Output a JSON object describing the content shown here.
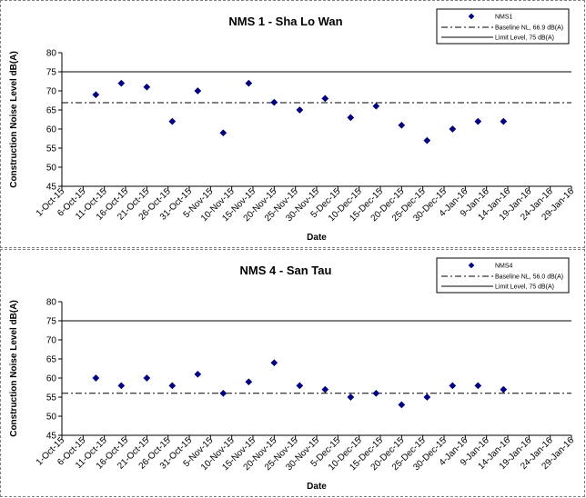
{
  "chart_data": [
    {
      "type": "scatter",
      "title": "NMS 1 - Sha Lo Wan",
      "xlabel": "Date",
      "ylabel": "Construction Noise Level  dB(A)",
      "ylim": [
        45,
        80
      ],
      "yticks": [
        45,
        50,
        55,
        60,
        65,
        70,
        75,
        80
      ],
      "xlim": [
        "2015-10-01",
        "2016-01-29"
      ],
      "x_tick_labels": [
        "1-Oct-15",
        "6-Oct-15",
        "11-Oct-15",
        "16-Oct-15",
        "21-Oct-15",
        "26-Oct-15",
        "31-Oct-15",
        "5-Nov-15",
        "10-Nov-15",
        "15-Nov-15",
        "20-Nov-15",
        "25-Nov-15",
        "30-Nov-15",
        "5-Dec-15",
        "10-Dec-15",
        "15-Dec-15",
        "20-Dec-15",
        "25-Dec-15",
        "30-Dec-15",
        "4-Jan-16",
        "9-Jan-16",
        "14-Jan-16",
        "19-Jan-16",
        "24-Jan-16",
        "29-Jan-16"
      ],
      "legend_position": "top-right",
      "grid": false,
      "series": [
        {
          "name": "NMS1",
          "marker": "diamond",
          "color": "#000080",
          "points": [
            {
              "x": "2015-10-09",
              "y": 69
            },
            {
              "x": "2015-10-15",
              "y": 72
            },
            {
              "x": "2015-10-21",
              "y": 71
            },
            {
              "x": "2015-10-27",
              "y": 62
            },
            {
              "x": "2015-11-02",
              "y": 70
            },
            {
              "x": "2015-11-08",
              "y": 59
            },
            {
              "x": "2015-11-14",
              "y": 72
            },
            {
              "x": "2015-11-20",
              "y": 67
            },
            {
              "x": "2015-11-26",
              "y": 65
            },
            {
              "x": "2015-12-02",
              "y": 68
            },
            {
              "x": "2015-12-08",
              "y": 63
            },
            {
              "x": "2015-12-14",
              "y": 66
            },
            {
              "x": "2015-12-20",
              "y": 61
            },
            {
              "x": "2015-12-26",
              "y": 57
            },
            {
              "x": "2016-01-01",
              "y": 60
            },
            {
              "x": "2016-01-07",
              "y": 62
            },
            {
              "x": "2016-01-13",
              "y": 62
            }
          ]
        },
        {
          "name": "Baseline NL, 66.9 dB(A)",
          "type": "hline",
          "y": 66.9,
          "style": "dash-dot",
          "color": "#000000"
        },
        {
          "name": "Limit Level, 75 dB(A)",
          "type": "hline",
          "y": 75,
          "style": "solid",
          "color": "#000000"
        }
      ]
    },
    {
      "type": "scatter",
      "title": "NMS 4 - San Tau",
      "xlabel": "Date",
      "ylabel": "Construction Noise Level  dB(A)",
      "ylim": [
        45,
        80
      ],
      "yticks": [
        45,
        50,
        55,
        60,
        65,
        70,
        75,
        80
      ],
      "xlim": [
        "2015-10-01",
        "2016-01-29"
      ],
      "x_tick_labels": [
        "1-Oct-15",
        "6-Oct-15",
        "11-Oct-15",
        "16-Oct-15",
        "21-Oct-15",
        "26-Oct-15",
        "31-Oct-15",
        "5-Nov-15",
        "10-Nov-15",
        "15-Nov-15",
        "20-Nov-15",
        "25-Nov-15",
        "30-Nov-15",
        "5-Dec-15",
        "10-Dec-15",
        "15-Dec-15",
        "20-Dec-15",
        "25-Dec-15",
        "30-Dec-15",
        "4-Jan-16",
        "9-Jan-16",
        "14-Jan-16",
        "19-Jan-16",
        "24-Jan-16",
        "29-Jan-16"
      ],
      "legend_position": "top-right",
      "grid": false,
      "series": [
        {
          "name": "NMS4",
          "marker": "diamond",
          "color": "#000080",
          "points": [
            {
              "x": "2015-10-09",
              "y": 60
            },
            {
              "x": "2015-10-15",
              "y": 58
            },
            {
              "x": "2015-10-21",
              "y": 60
            },
            {
              "x": "2015-10-27",
              "y": 58
            },
            {
              "x": "2015-11-02",
              "y": 61
            },
            {
              "x": "2015-11-08",
              "y": 56
            },
            {
              "x": "2015-11-14",
              "y": 59
            },
            {
              "x": "2015-11-20",
              "y": 64
            },
            {
              "x": "2015-11-26",
              "y": 58
            },
            {
              "x": "2015-12-02",
              "y": 57
            },
            {
              "x": "2015-12-08",
              "y": 55
            },
            {
              "x": "2015-12-14",
              "y": 56
            },
            {
              "x": "2015-12-20",
              "y": 53
            },
            {
              "x": "2015-12-26",
              "y": 55
            },
            {
              "x": "2016-01-01",
              "y": 58
            },
            {
              "x": "2016-01-07",
              "y": 58
            },
            {
              "x": "2016-01-13",
              "y": 57
            }
          ]
        },
        {
          "name": "Baseline NL, 56.0 dB(A)",
          "type": "hline",
          "y": 56.0,
          "style": "dash-dot",
          "color": "#000000"
        },
        {
          "name": "Limit Level, 75 dB(A)",
          "type": "hline",
          "y": 75,
          "style": "solid",
          "color": "#000000"
        }
      ]
    }
  ]
}
